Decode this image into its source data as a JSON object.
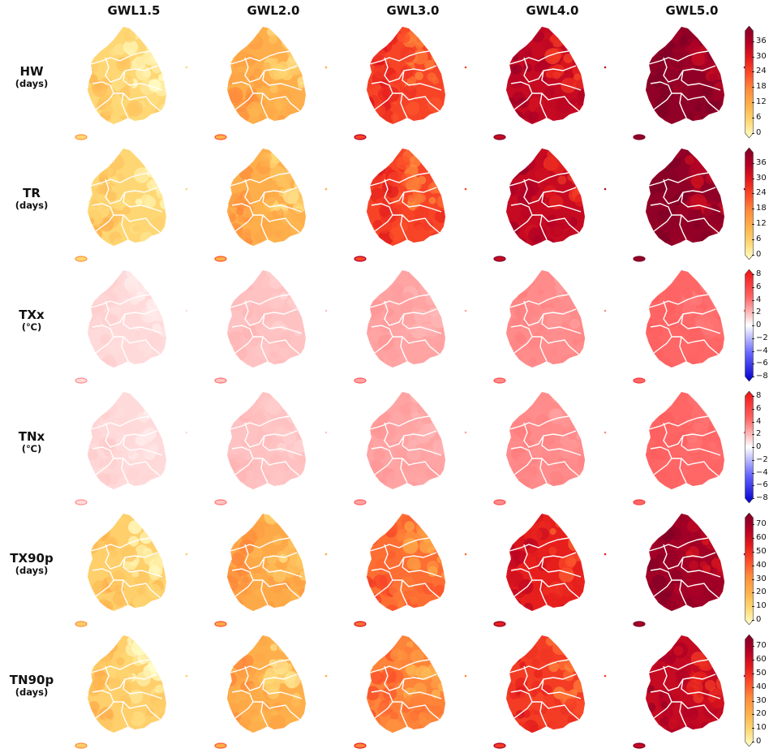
{
  "columns": [
    "GWL1.5",
    "GWL2.0",
    "GWL3.0",
    "GWL4.0",
    "GWL5.0"
  ],
  "rows": [
    {
      "var": "HW",
      "unit": "(days)",
      "colormap": "YlOrRd",
      "range": [
        0,
        40
      ],
      "extend": "both",
      "ticks": [
        "36",
        "30",
        "24",
        "18",
        "12",
        "6",
        "0"
      ],
      "intensity": [
        0.15,
        0.3,
        0.6,
        0.8,
        0.95
      ]
    },
    {
      "var": "TR",
      "unit": "(days)",
      "colormap": "YlOrRd",
      "range": [
        0,
        40
      ],
      "extend": "both",
      "ticks": [
        "36",
        "30",
        "24",
        "18",
        "12",
        "6",
        "0"
      ],
      "intensity": [
        0.15,
        0.3,
        0.6,
        0.8,
        0.95
      ]
    },
    {
      "var": "TXx",
      "unit": "(℃)",
      "colormap": "bwr",
      "range": [
        -8,
        8
      ],
      "extend": "both",
      "ticks": [
        "8",
        "6",
        "4",
        "2",
        "0",
        "−2",
        "−4",
        "−6",
        "−8"
      ],
      "intensity": [
        0.12,
        0.2,
        0.3,
        0.38,
        0.5
      ]
    },
    {
      "var": "TNx",
      "unit": "(℃)",
      "colormap": "bwr",
      "range": [
        -8,
        8
      ],
      "extend": "both",
      "ticks": [
        "8",
        "6",
        "4",
        "2",
        "0",
        "−2",
        "−4",
        "−6",
        "−8"
      ],
      "intensity": [
        0.12,
        0.2,
        0.3,
        0.38,
        0.5
      ]
    },
    {
      "var": "TX90p",
      "unit": "(days)",
      "colormap": "YlOrRd",
      "range": [
        0,
        75
      ],
      "extend": "both",
      "ticks": [
        "70",
        "60",
        "50",
        "40",
        "30",
        "20",
        "10",
        "0"
      ],
      "intensity": [
        0.18,
        0.32,
        0.5,
        0.7,
        0.9
      ]
    },
    {
      "var": "TN90p",
      "unit": "(days)",
      "colormap": "YlOrRd",
      "range": [
        0,
        75
      ],
      "extend": "both",
      "ticks": [
        "70",
        "60",
        "50",
        "40",
        "30",
        "20",
        "10",
        "0"
      ],
      "intensity": [
        0.18,
        0.3,
        0.45,
        0.62,
        0.8
      ]
    }
  ],
  "colors": {
    "ylorrd": [
      "#ffffcc",
      "#fed976",
      "#feb24c",
      "#fd8d3c",
      "#fc4e2a",
      "#e31a1c",
      "#b10026",
      "#800026"
    ],
    "bwr": [
      "#0000cc",
      "#6666ff",
      "#ffffff",
      "#ff6666",
      "#ee1111"
    ],
    "border": "#ffffff"
  }
}
